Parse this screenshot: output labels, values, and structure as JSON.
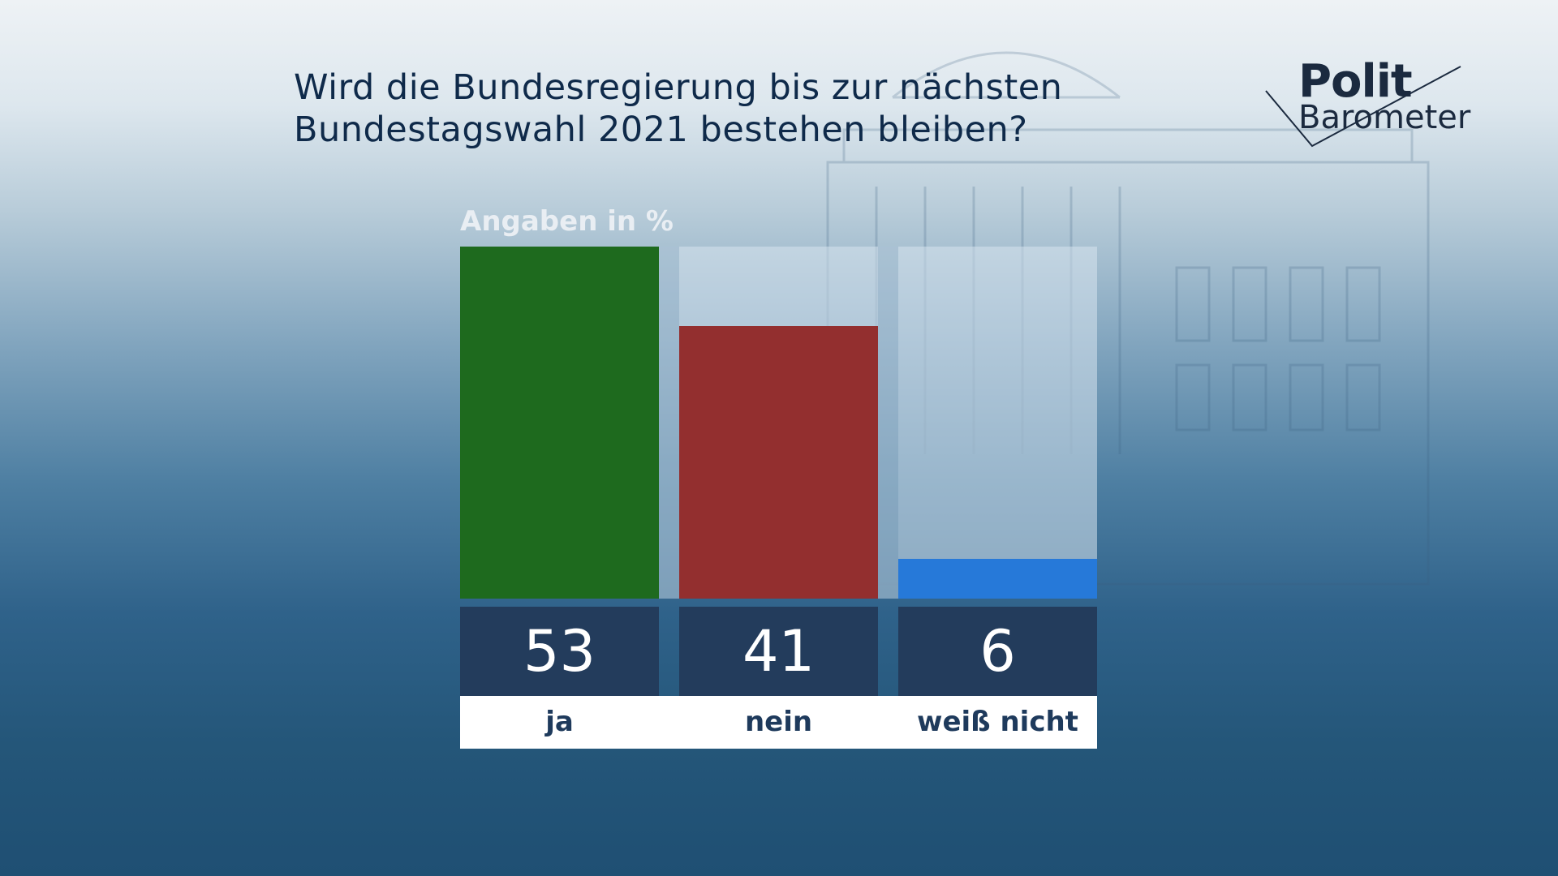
{
  "header": {
    "title_line1": "Wird die Bundesregierung bis zur nächsten",
    "title_line2": "Bundestagswahl 2021 bestehen bleiben?"
  },
  "logo": {
    "word1": "Polit",
    "word2": "Barometer"
  },
  "colors": {
    "title": "#0f2a4a",
    "value_box": "#233c5c",
    "label_text": "#1e3a5c"
  },
  "chart_data": {
    "type": "bar",
    "title": "Wird die Bundesregierung bis zur nächsten Bundestagswahl 2021 bestehen bleiben?",
    "unit_label": "Angaben in %",
    "categories": [
      "ja",
      "nein",
      "weiß nicht"
    ],
    "values": [
      53,
      41,
      6
    ],
    "colors": [
      "#1e6a1e",
      "#932f2f",
      "#2679d9"
    ],
    "ylim": [
      0,
      53
    ],
    "grid": false,
    "legend": "none"
  }
}
